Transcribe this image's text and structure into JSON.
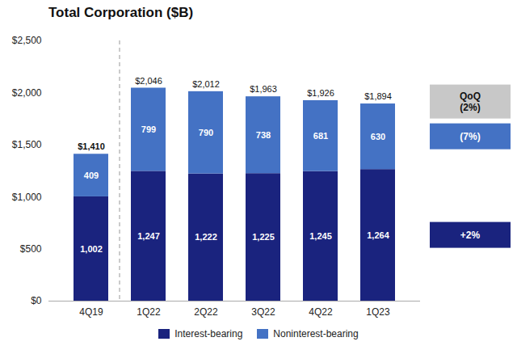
{
  "chart_data": {
    "type": "bar",
    "stacked": true,
    "title": "Total Corporation ($B)",
    "categories": [
      "4Q19",
      "1Q22",
      "2Q22",
      "3Q22",
      "4Q22",
      "1Q23"
    ],
    "series": [
      {
        "name": "Interest-bearing",
        "color": "#1a237e",
        "values": [
          1002,
          1247,
          1222,
          1225,
          1245,
          1264
        ],
        "value_labels": [
          "1,002",
          "1,247",
          "1,222",
          "1,225",
          "1,245",
          "1,264"
        ]
      },
      {
        "name": "Noninterest-bearing",
        "color": "#4472c4",
        "values": [
          409,
          799,
          790,
          738,
          681,
          630
        ],
        "value_labels": [
          "409",
          "799",
          "790",
          "738",
          "681",
          "630"
        ]
      }
    ],
    "totals": [
      1410,
      2046,
      2012,
      1963,
      1926,
      1894
    ],
    "total_labels": [
      "$1,410",
      "$2,046",
      "$2,012",
      "$1,963",
      "$1,926",
      "$1,894"
    ],
    "annotations": [
      {
        "text": "QoQ\n(2%)",
        "color": "#c8c8c8"
      },
      {
        "text": "(7%)",
        "color": "#4472c4"
      },
      {
        "text": "+2%",
        "color": "#1a237e"
      }
    ],
    "ylim": [
      0,
      2500
    ],
    "yticks": [
      {
        "value": 0,
        "label": "$0"
      },
      {
        "value": 500,
        "label": "$500"
      },
      {
        "value": 1000,
        "label": "$1,000"
      },
      {
        "value": 1500,
        "label": "$1,500"
      },
      {
        "value": 2000,
        "label": "$2,000"
      },
      {
        "value": 2500,
        "label": "$2,500"
      }
    ],
    "grid": false,
    "data_labels": true,
    "legend": "bottom"
  }
}
